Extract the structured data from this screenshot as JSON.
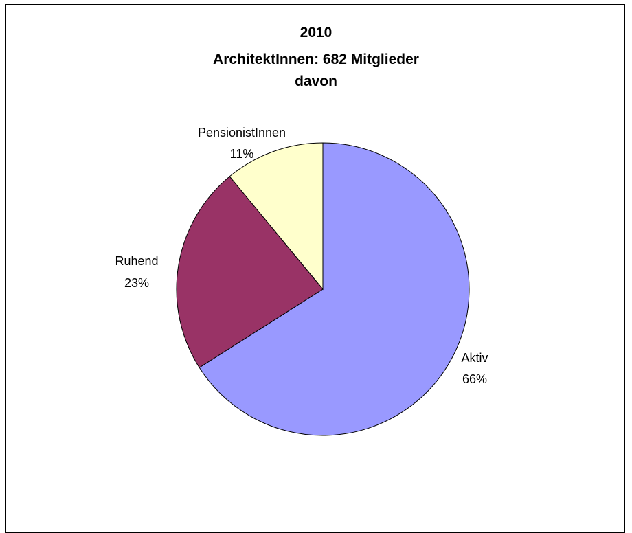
{
  "chart_data": {
    "type": "pie",
    "title_lines": [
      "2010",
      "ArchitektInnen: 682 Mitglieder",
      "davon"
    ],
    "slices": [
      {
        "label": "Aktiv",
        "value": 66,
        "value_label": "66%",
        "color": "#9999ff"
      },
      {
        "label": "Ruhend",
        "value": 23,
        "value_label": "23%",
        "color": "#993366"
      },
      {
        "label": "PensionistInnen",
        "value": 11,
        "value_label": "11%",
        "color": "#ffffcc"
      }
    ],
    "legend": "none",
    "start_angle": "12 o'clock, clockwise"
  }
}
